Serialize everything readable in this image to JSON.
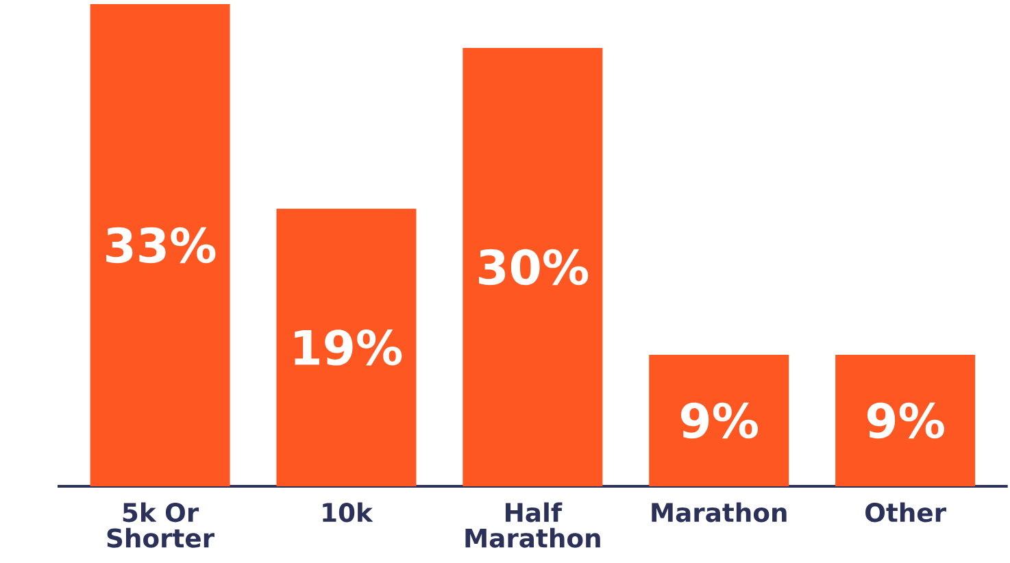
{
  "chart_data": {
    "type": "bar",
    "categories": [
      "5k Or Shorter",
      "10k",
      "Half Marathon",
      "Marathon",
      "Other"
    ],
    "values": [
      33,
      19,
      30,
      9,
      9
    ],
    "value_labels": [
      "33%",
      "19%",
      "30%",
      "9%",
      "9%"
    ],
    "color": "#ff5722"
  }
}
